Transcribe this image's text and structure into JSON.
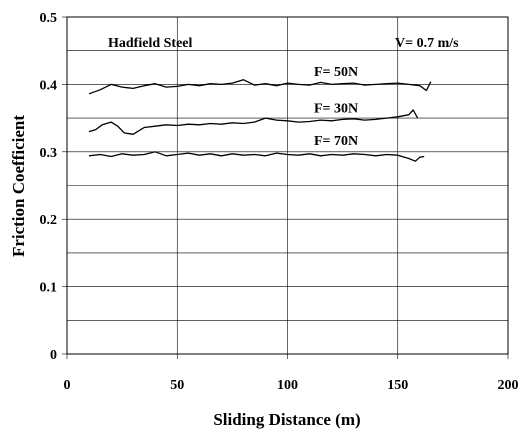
{
  "chart_data": {
    "type": "line",
    "title": "",
    "xlabel": "Sliding Distance (m)",
    "ylabel": "Friction Coefficient",
    "xlim": [
      0,
      200
    ],
    "ylim": [
      0,
      0.5
    ],
    "x_ticks": [
      "0",
      "50",
      "100",
      "150",
      "200"
    ],
    "y_ticks": [
      "0",
      "0.1",
      "0.2",
      "0.3",
      "0.4",
      "0.5"
    ],
    "grid": true,
    "annotations": {
      "material": "Hadfield Steel",
      "velocity": "V= 0.7 m/s"
    },
    "series": [
      {
        "name": "F= 50N",
        "x": [
          10,
          15,
          20,
          25,
          30,
          35,
          40,
          45,
          50,
          55,
          60,
          65,
          70,
          75,
          80,
          85,
          90,
          95,
          100,
          105,
          110,
          115,
          120,
          125,
          130,
          135,
          140,
          145,
          150,
          155,
          160,
          163,
          165
        ],
        "y": [
          0.386,
          0.392,
          0.4,
          0.396,
          0.394,
          0.398,
          0.401,
          0.396,
          0.397,
          0.4,
          0.398,
          0.401,
          0.4,
          0.402,
          0.407,
          0.399,
          0.401,
          0.398,
          0.402,
          0.4,
          0.399,
          0.403,
          0.4,
          0.401,
          0.402,
          0.399,
          0.4,
          0.401,
          0.402,
          0.4,
          0.398,
          0.391,
          0.404
        ]
      },
      {
        "name": "F= 30N",
        "x": [
          10,
          13,
          16,
          20,
          23,
          26,
          30,
          35,
          40,
          45,
          50,
          55,
          60,
          65,
          70,
          75,
          80,
          85,
          90,
          95,
          100,
          105,
          110,
          115,
          120,
          125,
          130,
          135,
          140,
          145,
          150,
          155,
          157,
          159
        ],
        "y": [
          0.33,
          0.333,
          0.34,
          0.344,
          0.338,
          0.328,
          0.326,
          0.336,
          0.338,
          0.34,
          0.339,
          0.341,
          0.34,
          0.342,
          0.341,
          0.343,
          0.342,
          0.344,
          0.35,
          0.347,
          0.346,
          0.344,
          0.345,
          0.347,
          0.346,
          0.348,
          0.349,
          0.347,
          0.348,
          0.35,
          0.352,
          0.355,
          0.362,
          0.35
        ]
      },
      {
        "name": "F= 70N",
        "x": [
          10,
          15,
          20,
          25,
          30,
          35,
          40,
          45,
          50,
          55,
          60,
          65,
          70,
          75,
          80,
          85,
          90,
          95,
          100,
          105,
          110,
          115,
          120,
          125,
          130,
          135,
          140,
          145,
          150,
          155,
          158,
          160,
          162
        ],
        "y": [
          0.294,
          0.296,
          0.293,
          0.297,
          0.295,
          0.296,
          0.3,
          0.294,
          0.296,
          0.298,
          0.295,
          0.297,
          0.294,
          0.297,
          0.295,
          0.296,
          0.294,
          0.298,
          0.296,
          0.295,
          0.297,
          0.294,
          0.296,
          0.295,
          0.297,
          0.296,
          0.294,
          0.296,
          0.295,
          0.29,
          0.286,
          0.292,
          0.293
        ]
      }
    ]
  }
}
